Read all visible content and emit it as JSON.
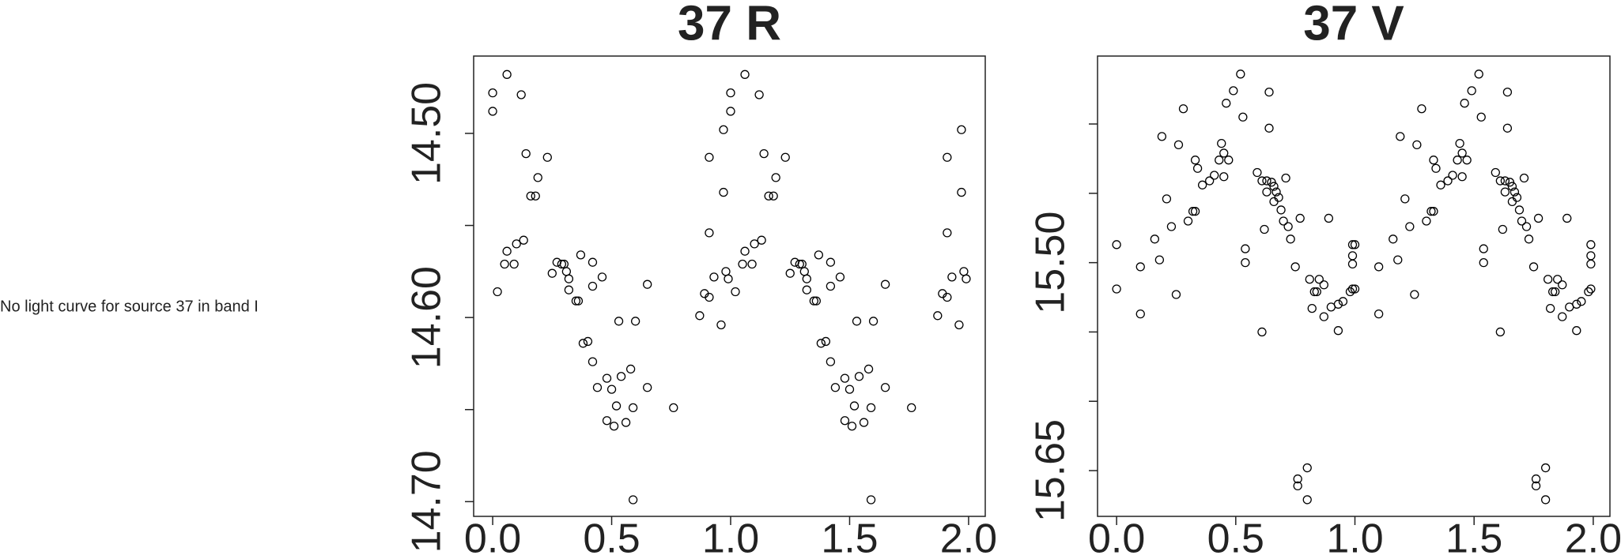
{
  "message": "No light curve for source 37 in band I",
  "chart_data": [
    {
      "type": "scatter",
      "title": "37 R",
      "color": "#000000",
      "x": [
        0.0,
        0.0,
        0.02,
        0.06,
        0.05,
        0.06,
        0.09,
        0.1,
        0.12,
        0.13,
        0.14,
        0.16,
        0.18,
        0.19,
        0.23,
        0.25,
        0.27,
        0.29,
        0.3,
        0.31,
        0.32,
        0.32,
        0.35,
        0.36,
        0.37,
        0.38,
        0.4,
        0.42,
        0.42,
        0.42,
        0.44,
        0.46,
        0.48,
        0.48,
        0.5,
        0.51,
        0.52,
        0.53,
        0.54,
        0.56,
        0.58,
        0.59,
        0.59,
        0.6,
        0.65,
        0.65,
        0.76,
        0.87,
        0.89,
        0.91,
        0.91,
        0.91,
        0.93,
        0.96,
        0.97,
        0.97,
        0.98,
        0.99,
        1.0,
        1.0,
        1.02,
        1.06,
        1.05,
        1.06,
        1.09,
        1.1,
        1.12,
        1.13,
        1.14,
        1.16,
        1.18,
        1.19,
        1.23,
        1.25,
        1.27,
        1.29,
        1.3,
        1.31,
        1.32,
        1.32,
        1.35,
        1.36,
        1.37,
        1.38,
        1.4,
        1.42,
        1.42,
        1.42,
        1.44,
        1.46,
        1.48,
        1.48,
        1.5,
        1.51,
        1.52,
        1.53,
        1.54,
        1.56,
        1.58,
        1.59,
        1.59,
        1.6,
        1.65,
        1.65,
        1.76,
        1.87,
        1.89,
        1.91,
        1.91,
        1.91,
        1.93,
        1.96,
        1.97,
        1.97,
        1.98,
        1.99
      ],
      "values": [
        14.478,
        14.488,
        14.586,
        14.468,
        14.571,
        14.564,
        14.571,
        14.56,
        14.479,
        14.558,
        14.511,
        14.534,
        14.534,
        14.524,
        14.513,
        14.576,
        14.57,
        14.571,
        14.571,
        14.575,
        14.579,
        14.585,
        14.591,
        14.591,
        14.566,
        14.614,
        14.613,
        14.624,
        14.583,
        14.57,
        14.638,
        14.578,
        14.633,
        14.656,
        14.639,
        14.659,
        14.648,
        14.602,
        14.632,
        14.657,
        14.628,
        14.699,
        14.649,
        14.602,
        14.582,
        14.638,
        14.649,
        14.599,
        14.587,
        14.513,
        14.554,
        14.589,
        14.578,
        14.604,
        14.498,
        14.532,
        14.575,
        14.579,
        14.478,
        14.488,
        14.586,
        14.468,
        14.571,
        14.564,
        14.571,
        14.56,
        14.479,
        14.558,
        14.511,
        14.534,
        14.534,
        14.524,
        14.513,
        14.576,
        14.57,
        14.571,
        14.571,
        14.575,
        14.579,
        14.585,
        14.591,
        14.591,
        14.566,
        14.614,
        14.613,
        14.624,
        14.583,
        14.57,
        14.638,
        14.578,
        14.633,
        14.656,
        14.639,
        14.659,
        14.648,
        14.602,
        14.632,
        14.657,
        14.628,
        14.699,
        14.649,
        14.602,
        14.582,
        14.638,
        14.649,
        14.599,
        14.587,
        14.513,
        14.554,
        14.589,
        14.578,
        14.604,
        14.498,
        14.532,
        14.575,
        14.579
      ],
      "xlim": [
        -0.08,
        2.07
      ],
      "ylim": [
        14.708,
        14.458
      ],
      "xticks": [
        {
          "value": 0,
          "label": "0.0"
        },
        {
          "value": 0.5,
          "label": "0.5"
        },
        {
          "value": 1,
          "label": "1.0"
        },
        {
          "value": 1.5,
          "label": "1.5"
        },
        {
          "value": 2,
          "label": "2.0"
        }
      ],
      "yticks": [
        {
          "value": 14.5,
          "label": "14.50"
        },
        {
          "value": 14.6,
          "label": "14.60"
        },
        {
          "value": 14.7,
          "label": "14.70"
        }
      ],
      "yminorticks": [
        14.55,
        14.65
      ]
    },
    {
      "type": "scatter",
      "title": "37 V",
      "color": "#000000",
      "x": [
        0.0,
        0.0,
        0.1,
        0.1,
        0.16,
        0.18,
        0.19,
        0.21,
        0.23,
        0.25,
        0.26,
        0.28,
        0.3,
        0.32,
        0.33,
        0.33,
        0.34,
        0.36,
        0.39,
        0.41,
        0.43,
        0.44,
        0.45,
        0.45,
        0.46,
        0.47,
        0.49,
        0.52,
        0.53,
        0.54,
        0.54,
        0.59,
        0.61,
        0.61,
        0.62,
        0.63,
        0.63,
        0.64,
        0.64,
        0.65,
        0.66,
        0.66,
        0.67,
        0.68,
        0.69,
        0.7,
        0.71,
        0.72,
        0.73,
        0.75,
        0.76,
        0.76,
        0.77,
        0.8,
        0.8,
        0.81,
        0.82,
        0.83,
        0.84,
        0.85,
        0.87,
        0.87,
        0.89,
        0.9,
        0.93,
        0.93,
        0.95,
        0.98,
        0.99,
        0.99,
        0.99,
        0.99,
        1.0,
        1.0,
        1.1,
        1.1,
        1.16,
        1.18,
        1.19,
        1.21,
        1.23,
        1.25,
        1.26,
        1.28,
        1.3,
        1.32,
        1.33,
        1.33,
        1.34,
        1.36,
        1.39,
        1.41,
        1.43,
        1.44,
        1.45,
        1.45,
        1.46,
        1.47,
        1.49,
        1.52,
        1.53,
        1.54,
        1.54,
        1.59,
        1.61,
        1.61,
        1.62,
        1.63,
        1.63,
        1.64,
        1.64,
        1.65,
        1.66,
        1.66,
        1.67,
        1.68,
        1.69,
        1.7,
        1.71,
        1.72,
        1.73,
        1.75,
        1.76,
        1.76,
        1.77,
        1.8,
        1.8,
        1.81,
        1.82,
        1.83,
        1.84,
        1.85,
        1.87,
        1.87,
        1.89,
        1.9,
        1.93,
        1.93,
        1.95,
        1.98,
        1.99,
        1.99,
        1.99,
        1.99
      ],
      "values": [
        15.487,
        15.519,
        15.503,
        15.537,
        15.483,
        15.498,
        15.409,
        15.454,
        15.474,
        15.523,
        15.415,
        15.389,
        15.47,
        15.463,
        15.463,
        15.426,
        15.432,
        15.444,
        15.441,
        15.437,
        15.426,
        15.414,
        15.421,
        15.438,
        15.385,
        15.426,
        15.376,
        15.364,
        15.395,
        15.49,
        15.5,
        15.435,
        15.441,
        15.55,
        15.476,
        15.441,
        15.449,
        15.377,
        15.403,
        15.442,
        15.456,
        15.445,
        15.449,
        15.453,
        15.462,
        15.47,
        15.439,
        15.474,
        15.483,
        15.503,
        15.656,
        15.661,
        15.468,
        15.648,
        15.671,
        15.512,
        15.533,
        15.521,
        15.521,
        15.512,
        15.539,
        15.516,
        15.468,
        15.532,
        15.53,
        15.549,
        15.528,
        15.521,
        15.519,
        15.501,
        15.487,
        15.495,
        15.487,
        15.519,
        15.503,
        15.537,
        15.483,
        15.498,
        15.409,
        15.454,
        15.474,
        15.523,
        15.415,
        15.389,
        15.47,
        15.463,
        15.463,
        15.426,
        15.432,
        15.444,
        15.441,
        15.437,
        15.426,
        15.414,
        15.421,
        15.438,
        15.385,
        15.426,
        15.376,
        15.364,
        15.395,
        15.49,
        15.5,
        15.435,
        15.441,
        15.55,
        15.476,
        15.441,
        15.449,
        15.377,
        15.403,
        15.442,
        15.456,
        15.445,
        15.449,
        15.453,
        15.462,
        15.47,
        15.439,
        15.474,
        15.483,
        15.503,
        15.656,
        15.661,
        15.468,
        15.648,
        15.671,
        15.512,
        15.533,
        15.521,
        15.521,
        15.512,
        15.539,
        15.516,
        15.468,
        15.532,
        15.53,
        15.549,
        15.528,
        15.521,
        15.519,
        15.501,
        15.487,
        15.495
      ],
      "xlim": [
        -0.08,
        2.07
      ],
      "ylim": [
        15.683,
        15.351
      ],
      "xticks": [
        {
          "value": 0,
          "label": "0.0"
        },
        {
          "value": 0.5,
          "label": "0.5"
        },
        {
          "value": 1,
          "label": "1.0"
        },
        {
          "value": 1.5,
          "label": "1.5"
        },
        {
          "value": 2,
          "label": "2.0"
        }
      ],
      "yticks": [
        {
          "value": 15.5,
          "label": "15.50"
        },
        {
          "value": 15.65,
          "label": "15.65"
        }
      ],
      "yminorticks": [
        15.4,
        15.45,
        15.55,
        15.6
      ]
    }
  ]
}
